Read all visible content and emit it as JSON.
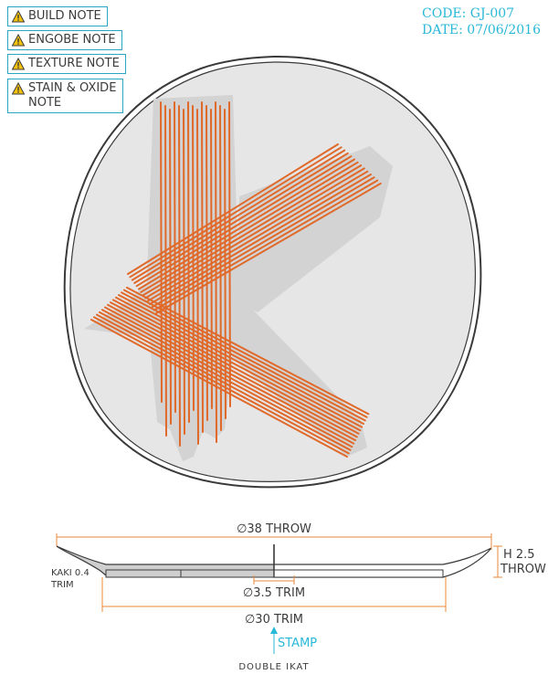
{
  "notes": [
    {
      "label": "BUILD NOTE",
      "icon": "warning-icon"
    },
    {
      "label": "ENGOBE NOTE",
      "icon": "warning-icon"
    },
    {
      "label": "TEXTURE NOTE",
      "icon": "warning-icon"
    },
    {
      "label": "STAIN & OXIDE NOTE",
      "icon": "warning-icon"
    }
  ],
  "meta": {
    "code": "CODE: GJ-007",
    "date": "DATE: 07/06/2016"
  },
  "colors": {
    "accent": "#2aa6c3",
    "stripe": "#e0692a",
    "glaze": "#d6d6d6",
    "plate": "#e6e6e6",
    "outline": "#3a3a3a",
    "dimension": "#e8893a",
    "stamp": "#28b8d8"
  },
  "profile": {
    "diameter_label": "∅38 THROW",
    "height_label_1": "H 2.5",
    "height_label_2": "THROW",
    "foot_label": "∅3.5 TRIM",
    "base_label": "∅30 TRIM",
    "kaki_label_1": "KAKI 0.4",
    "kaki_label_2": "TRIM",
    "stamp_label": "STAMP",
    "brand": "DOUBLE IKAT"
  }
}
